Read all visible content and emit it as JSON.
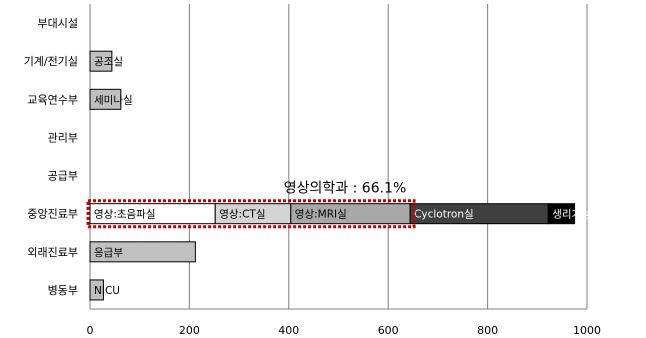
{
  "chart_data": {
    "type": "bar",
    "orientation": "horizontal",
    "stacked": true,
    "categories": [
      "병동부",
      "외래진료부",
      "중앙진료부",
      "공급부",
      "관리부",
      "교육연수부",
      "기계/전기실",
      "부대시설"
    ],
    "xlim": [
      0,
      1000
    ],
    "x_ticks": [
      "0",
      "200",
      "400",
      "600",
      "800",
      "1000"
    ],
    "grid": "vertical",
    "bars": [
      {
        "category": "병동부",
        "segments": [
          {
            "label": "NICU",
            "value": 27,
            "fill": "#c0c0c0",
            "text_color": "#000000"
          }
        ]
      },
      {
        "category": "외래진료부",
        "segments": [
          {
            "label": "응급부",
            "value": 212,
            "fill": "#c0c0c0",
            "text_color": "#000000"
          }
        ]
      },
      {
        "category": "중앙진료부",
        "segments": [
          {
            "label": "영상:초음파실",
            "value": 252,
            "fill": "#ffffff",
            "text_color": "#000000"
          },
          {
            "label": "영상:CT실",
            "value": 152,
            "fill": "#d4d4d4",
            "text_color": "#000000"
          },
          {
            "label": "영상:MRI실",
            "value": 240,
            "fill": "#a8a8a8",
            "text_color": "#000000"
          },
          {
            "label": "Cyclotron실",
            "value": 278,
            "fill": "#404040",
            "text_color": "#ffffff"
          },
          {
            "label": "생리기능검사부",
            "value": 53,
            "fill": "#000000",
            "text_color": "#ffffff"
          }
        ]
      },
      {
        "category": "공급부",
        "segments": []
      },
      {
        "category": "관리부",
        "segments": []
      },
      {
        "category": "교육연수부",
        "segments": [
          {
            "label": "세미나실",
            "value": 62,
            "fill": "#c0c0c0",
            "text_color": "#000000"
          }
        ]
      },
      {
        "category": "기계/전기실",
        "segments": [
          {
            "label": "공조실",
            "value": 44,
            "fill": "#c0c0c0",
            "text_color": "#000000"
          }
        ]
      },
      {
        "category": "부대시설",
        "segments": []
      }
    ],
    "highlight": {
      "label": "영상의학과 : 66.1%",
      "category": "중앙진료부",
      "x_from": 0,
      "x_to": 644,
      "color": "#c00000"
    }
  }
}
